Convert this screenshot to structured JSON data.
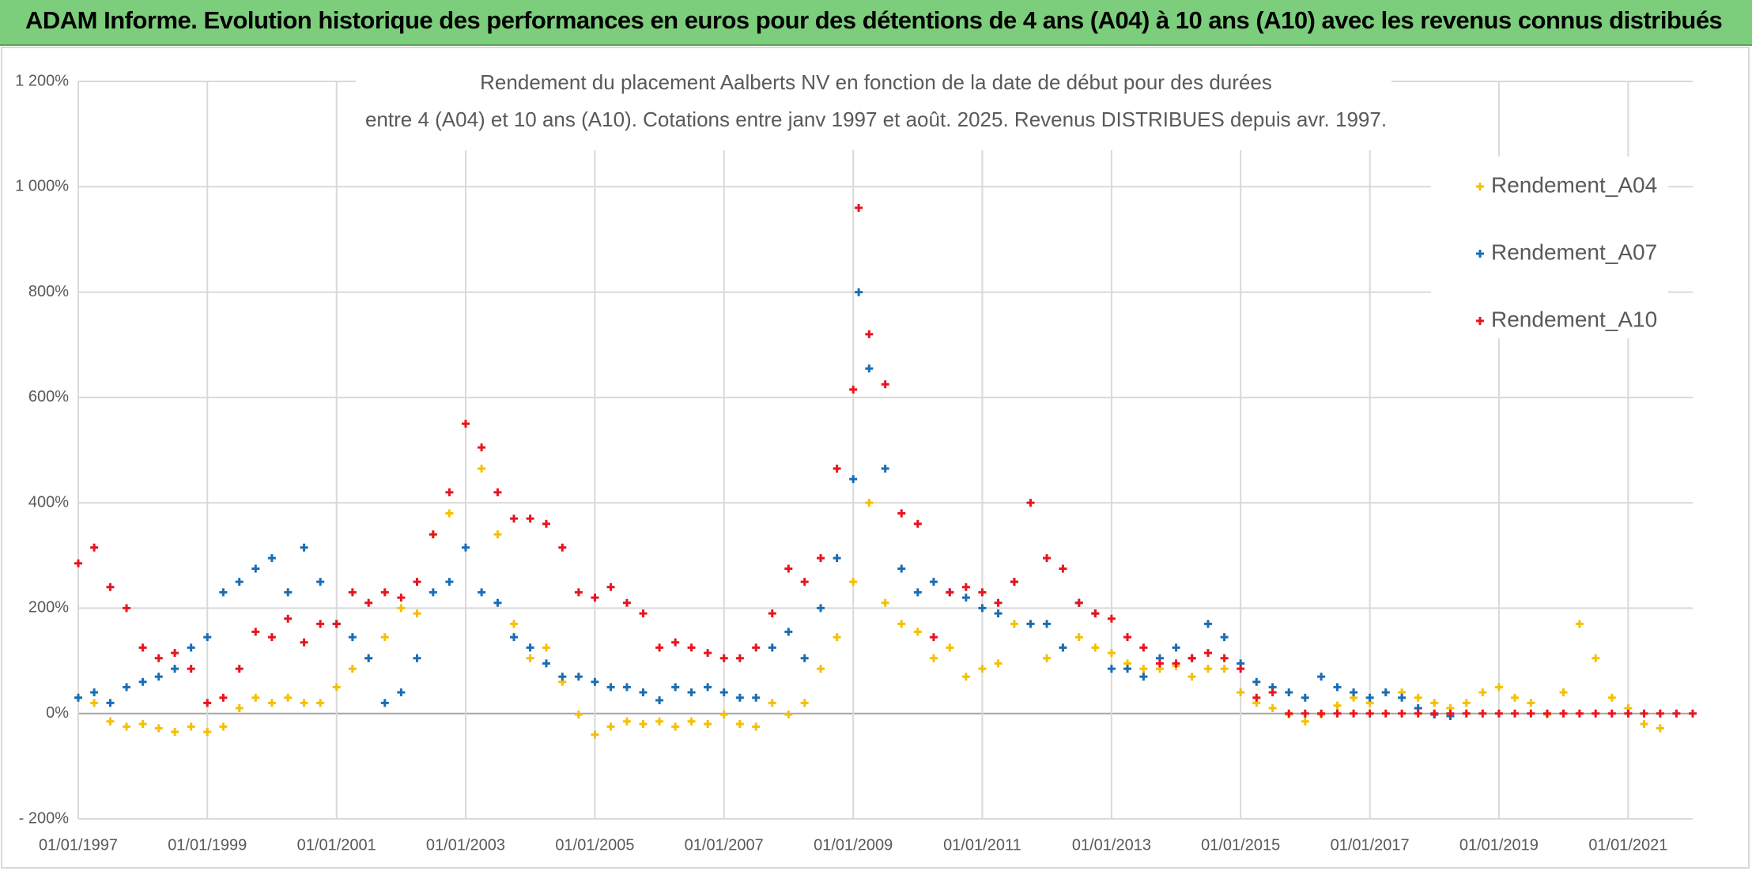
{
  "header": {
    "title": "ADAM Informe. Evolution historique des performances en euros pour des détentions de 4 ans (A04) à 10 ans (A10) avec les revenus connus distribués"
  },
  "chart_data": {
    "type": "scatter",
    "title": [
      "Rendement du placement Aalberts NV en fonction de la date de début pour des durées",
      "entre 4 (A04) et 10 ans (A10). Cotations entre janv 1997 et août. 2025. Revenus DISTRIBUES depuis avr. 1997."
    ],
    "xlim": [
      "01/01/1997",
      "01/01/2022"
    ],
    "xticks": [
      "01/01/1997",
      "01/01/1999",
      "01/01/2001",
      "01/01/2003",
      "01/01/2005",
      "01/01/2007",
      "01/01/2009",
      "01/01/2011",
      "01/01/2013",
      "01/01/2015",
      "01/01/2017",
      "01/01/2019",
      "01/01/2021"
    ],
    "ylim": [
      -200,
      1200
    ],
    "yticks": [
      {
        "value": -200,
        "label": "- 200%"
      },
      {
        "value": 0,
        "label": "0%"
      },
      {
        "value": 200,
        "label": "200%"
      },
      {
        "value": 400,
        "label": "400%"
      },
      {
        "value": 600,
        "label": "600%"
      },
      {
        "value": 800,
        "label": "800%"
      },
      {
        "value": 1000,
        "label": "1 000%"
      },
      {
        "value": 1200,
        "label": "1 200%"
      }
    ],
    "grid": true,
    "legend": "right",
    "series": [
      {
        "name": "Rendement_A04",
        "color": "#f5c000",
        "x": [
          "01/01/1997",
          "01/04/1997",
          "01/07/1997",
          "01/10/1997",
          "01/01/1998",
          "01/04/1998",
          "01/07/1998",
          "01/10/1998",
          "01/01/1999",
          "01/04/1999",
          "01/07/1999",
          "01/10/1999",
          "01/01/2000",
          "01/04/2000",
          "01/07/2000",
          "01/10/2000",
          "01/01/2001",
          "01/04/2001",
          "01/07/2001",
          "01/10/2001",
          "01/01/2002",
          "01/04/2002",
          "01/07/2002",
          "01/10/2002",
          "01/01/2003",
          "01/04/2003",
          "01/07/2003",
          "01/10/2003",
          "01/01/2004",
          "01/04/2004",
          "01/07/2004",
          "01/10/2004",
          "01/01/2005",
          "01/04/2005",
          "01/07/2005",
          "01/10/2005",
          "01/01/2006",
          "01/04/2006",
          "01/07/2006",
          "01/10/2006",
          "01/01/2007",
          "01/04/2007",
          "01/07/2007",
          "01/10/2007",
          "01/01/2008",
          "01/04/2008",
          "01/07/2008",
          "01/10/2008",
          "01/01/2009",
          "01/04/2009",
          "01/07/2009",
          "01/10/2009",
          "01/01/2010",
          "01/04/2010",
          "01/07/2010",
          "01/10/2010",
          "01/01/2011",
          "01/04/2011",
          "01/07/2011",
          "01/10/2011",
          "01/01/2012",
          "01/04/2012",
          "01/07/2012",
          "01/10/2012",
          "01/01/2013",
          "01/04/2013",
          "01/07/2013",
          "01/10/2013",
          "01/01/2014",
          "01/04/2014",
          "01/07/2014",
          "01/10/2014",
          "01/01/2015",
          "01/04/2015",
          "01/07/2015",
          "01/10/2015",
          "01/01/2016",
          "01/04/2016",
          "01/07/2016",
          "01/10/2016",
          "01/01/2017",
          "01/04/2017",
          "01/07/2017",
          "01/10/2017",
          "01/01/2018",
          "01/04/2018",
          "01/07/2018",
          "01/10/2018",
          "01/01/2019",
          "01/04/2019",
          "01/07/2019",
          "01/10/2019",
          "01/01/2020",
          "01/04/2020",
          "01/07/2020",
          "01/10/2020",
          "01/01/2021",
          "01/04/2021",
          "01/07/2021"
        ],
        "values": [
          30,
          20,
          -15,
          -25,
          -20,
          -28,
          -35,
          -25,
          -35,
          -25,
          10,
          30,
          20,
          30,
          20,
          20,
          50,
          85,
          105,
          145,
          200,
          190,
          340,
          380,
          550,
          465,
          340,
          170,
          105,
          125,
          60,
          -2,
          -40,
          -25,
          -15,
          -20,
          -15,
          -25,
          -15,
          -20,
          -2,
          -20,
          -25,
          20,
          -2,
          20,
          85,
          145,
          250,
          400,
          210,
          170,
          155,
          105,
          125,
          70,
          85,
          95,
          170,
          170,
          105,
          125,
          145,
          125,
          115,
          95,
          85,
          85,
          90,
          70,
          85,
          85,
          40,
          20,
          10,
          -2,
          -15,
          -2,
          15,
          30,
          20,
          40,
          40,
          30,
          20,
          10,
          20,
          40,
          50,
          30,
          20,
          -2,
          40,
          170,
          105,
          30,
          10,
          -20,
          -28
        ]
      },
      {
        "name": "Rendement_A07",
        "color": "#1a6db3",
        "x": [
          "01/01/1997",
          "01/04/1997",
          "01/07/1997",
          "01/10/1997",
          "01/01/1998",
          "01/04/1998",
          "01/07/1998",
          "01/10/1998",
          "01/01/1999",
          "01/04/1999",
          "01/07/1999",
          "01/10/1999",
          "01/01/2000",
          "01/04/2000",
          "01/07/2000",
          "01/10/2000",
          "01/01/2001",
          "01/04/2001",
          "01/07/2001",
          "01/10/2001",
          "01/01/2002",
          "01/04/2002",
          "01/07/2002",
          "01/10/2002",
          "01/01/2003",
          "01/04/2003",
          "01/07/2003",
          "01/10/2003",
          "01/01/2004",
          "01/04/2004",
          "01/07/2004",
          "01/10/2004",
          "01/01/2005",
          "01/04/2005",
          "01/07/2005",
          "01/10/2005",
          "01/01/2006",
          "01/04/2006",
          "01/07/2006",
          "01/10/2006",
          "01/01/2007",
          "01/04/2007",
          "01/07/2007",
          "01/10/2007",
          "01/01/2008",
          "01/04/2008",
          "01/07/2008",
          "01/10/2008",
          "01/01/2009",
          "01/02/2009",
          "01/04/2009",
          "01/07/2009",
          "01/10/2009",
          "01/01/2010",
          "01/04/2010",
          "01/07/2010",
          "01/10/2010",
          "01/01/2011",
          "01/04/2011",
          "01/07/2011",
          "01/10/2011",
          "01/01/2012",
          "01/04/2012",
          "01/07/2012",
          "01/10/2012",
          "01/01/2013",
          "01/04/2013",
          "01/07/2013",
          "01/10/2013",
          "01/01/2014",
          "01/04/2014",
          "01/07/2014",
          "01/10/2014",
          "01/01/2015",
          "01/04/2015",
          "01/07/2015",
          "01/10/2015",
          "01/01/2016",
          "01/04/2016",
          "01/07/2016",
          "01/10/2016",
          "01/01/2017",
          "01/04/2017",
          "01/07/2017",
          "01/10/2017",
          "01/01/2018",
          "01/04/2018"
        ],
        "values": [
          30,
          40,
          20,
          50,
          60,
          70,
          85,
          125,
          145,
          230,
          250,
          275,
          295,
          230,
          315,
          250,
          170,
          145,
          105,
          20,
          40,
          105,
          230,
          250,
          315,
          230,
          210,
          145,
          125,
          95,
          70,
          70,
          60,
          50,
          50,
          40,
          25,
          50,
          40,
          50,
          40,
          30,
          30,
          125,
          155,
          105,
          200,
          295,
          445,
          800,
          655,
          465,
          275,
          230,
          250,
          230,
          220,
          200,
          190,
          250,
          170,
          170,
          125,
          210,
          190,
          85,
          85,
          70,
          105,
          125,
          105,
          170,
          145,
          95,
          60,
          50,
          40,
          30,
          70,
          50,
          40,
          30,
          40,
          30,
          10,
          -2,
          -5
        ]
      },
      {
        "name": "Rendement_A10",
        "color": "#e8141e",
        "x": [
          "01/01/1997",
          "01/04/1997",
          "01/07/1997",
          "01/10/1997",
          "01/01/1998",
          "01/04/1998",
          "01/07/1998",
          "01/10/1998",
          "01/01/1999",
          "01/04/1999",
          "01/07/1999",
          "01/10/1999",
          "01/01/2000",
          "01/04/2000",
          "01/07/2000",
          "01/10/2000",
          "01/01/2001",
          "01/04/2001",
          "01/07/2001",
          "01/10/2001",
          "01/01/2002",
          "01/04/2002",
          "01/07/2002",
          "01/10/2002",
          "01/01/2003",
          "01/04/2003",
          "01/07/2003",
          "01/10/2003",
          "01/01/2004",
          "01/04/2004",
          "01/07/2004",
          "01/10/2004",
          "01/01/2005",
          "01/04/2005",
          "01/07/2005",
          "01/10/2005",
          "01/01/2006",
          "01/04/2006",
          "01/07/2006",
          "01/10/2006",
          "01/01/2007",
          "01/04/2007",
          "01/07/2007",
          "01/10/2007",
          "01/01/2008",
          "01/04/2008",
          "01/07/2008",
          "01/10/2008",
          "01/01/2009",
          "01/02/2009",
          "01/04/2009",
          "01/07/2009",
          "01/10/2009",
          "01/01/2010",
          "01/04/2010",
          "01/07/2010",
          "01/10/2010",
          "01/01/2011",
          "01/04/2011",
          "01/07/2011",
          "01/10/2011",
          "01/01/2012",
          "01/04/2012",
          "01/07/2012",
          "01/10/2012",
          "01/01/2013",
          "01/04/2013",
          "01/07/2013",
          "01/10/2013",
          "01/01/2014",
          "01/04/2014",
          "01/07/2014",
          "01/10/2014",
          "01/01/2015",
          "01/04/2015",
          "01/07/2015",
          "01/10/2015",
          "01/01/2016",
          "01/04/2016",
          "01/07/2016",
          "01/10/2016",
          "01/01/2017",
          "01/04/2017",
          "01/07/2017",
          "01/10/2017",
          "01/01/2018",
          "01/04/2018",
          "01/07/2018",
          "01/10/2018",
          "01/01/2019",
          "01/04/2019",
          "01/07/2019",
          "01/10/2019",
          "01/01/2020",
          "01/04/2020",
          "01/07/2020",
          "01/10/2020",
          "01/01/2021",
          "01/04/2021",
          "01/07/2021",
          "01/10/2021",
          "01/01/2022"
        ],
        "values": [
          285,
          315,
          240,
          200,
          125,
          105,
          115,
          85,
          20,
          30,
          85,
          155,
          145,
          180,
          135,
          170,
          170,
          230,
          210,
          230,
          220,
          250,
          340,
          420,
          550,
          505,
          420,
          370,
          370,
          360,
          315,
          230,
          220,
          240,
          210,
          190,
          125,
          135,
          125,
          115,
          105,
          105,
          125,
          190,
          275,
          250,
          295,
          465,
          615,
          960,
          720,
          625,
          380,
          360,
          145,
          230,
          240,
          230,
          210,
          250,
          400,
          295,
          275,
          210,
          190,
          180,
          145,
          125,
          95,
          95,
          105,
          115,
          105,
          85,
          30,
          40,
          0,
          0,
          0,
          0,
          0,
          0,
          0,
          0,
          0,
          0,
          0,
          0,
          0,
          0,
          0,
          0,
          0,
          0,
          0,
          0,
          0,
          0,
          0,
          0,
          0,
          0
        ]
      }
    ]
  }
}
